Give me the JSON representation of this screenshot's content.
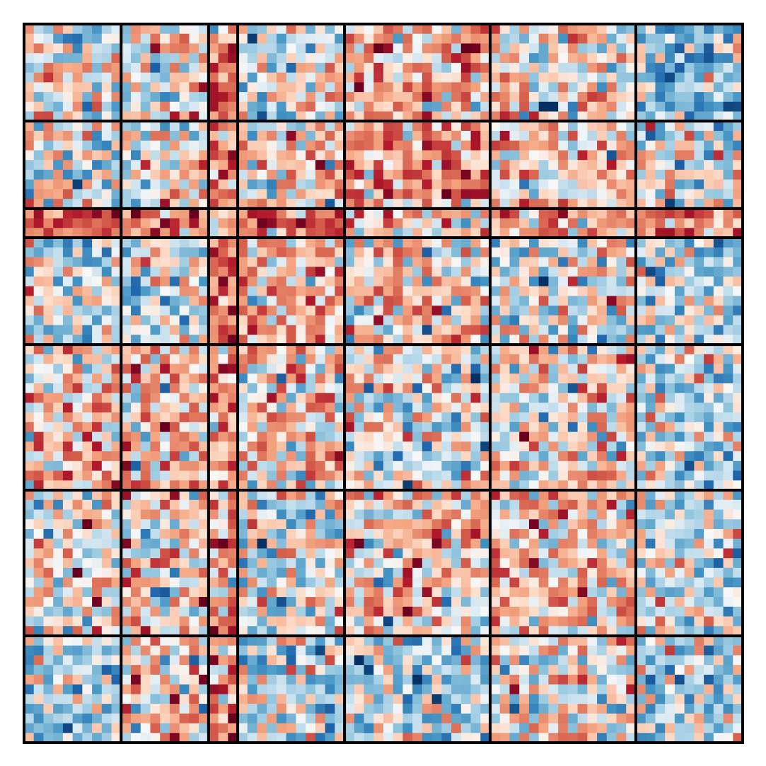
{
  "chart_data": {
    "type": "heatmap",
    "title": "",
    "xlabel": "",
    "ylabel": "",
    "colormap": "RdBu_r",
    "value_range": [
      -1,
      1
    ],
    "grid": false,
    "block_boundaries": [
      0,
      10,
      19,
      22,
      33,
      48,
      63,
      74
    ],
    "n_rows": 74,
    "n_cols": 74,
    "values_note_seed": 20240611,
    "cell_values_generated": true,
    "block_means": [
      [
        0.05,
        -0.1,
        0.45,
        -0.05,
        0.2,
        0.05,
        -0.25
      ],
      [
        -0.1,
        0.05,
        0.4,
        0.05,
        0.3,
        0.1,
        0.0
      ],
      [
        0.45,
        0.4,
        0.05,
        0.5,
        0.15,
        0.3,
        0.4
      ],
      [
        -0.1,
        -0.05,
        0.45,
        0.25,
        0.1,
        -0.05,
        -0.2
      ],
      [
        0.15,
        0.2,
        0.25,
        0.1,
        0.0,
        0.05,
        -0.15
      ],
      [
        0.0,
        0.05,
        0.25,
        -0.05,
        0.1,
        0.2,
        -0.05
      ],
      [
        -0.2,
        0.1,
        0.3,
        -0.15,
        -0.2,
        0.05,
        -0.2
      ]
    ],
    "block_spread": 0.3,
    "separator_color": "#000000"
  }
}
